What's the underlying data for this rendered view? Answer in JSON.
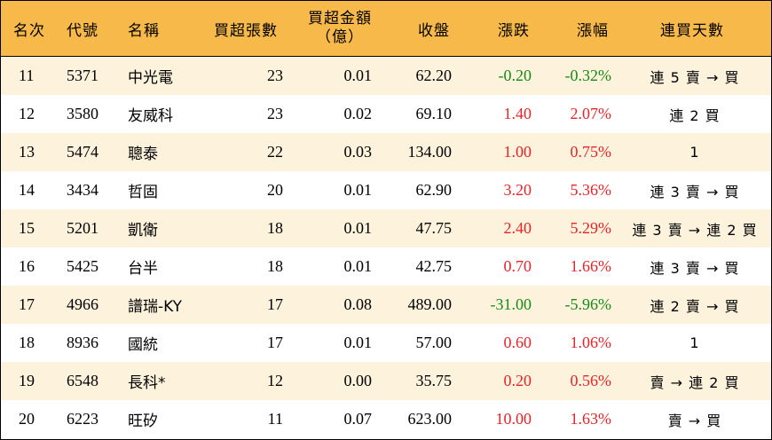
{
  "headers": {
    "rank": "名次",
    "code": "代號",
    "name": "名稱",
    "net_lots": "買超張數",
    "net_amount_line1": "買超金額",
    "net_amount_line2": "（億）",
    "close": "收盤",
    "change": "漲跌",
    "pct": "漲幅",
    "streak": "連買天數"
  },
  "rows": [
    {
      "rank": "11",
      "code": "5371",
      "name": "中光電",
      "lots": "23",
      "amount": "0.01",
      "close": "62.20",
      "change": "-0.20",
      "pct": "-0.32%",
      "streak": "連 5 賣 → 買",
      "dir": "down"
    },
    {
      "rank": "12",
      "code": "3580",
      "name": "友威科",
      "lots": "23",
      "amount": "0.02",
      "close": "69.10",
      "change": "1.40",
      "pct": "2.07%",
      "streak": "連 2 買",
      "dir": "up"
    },
    {
      "rank": "13",
      "code": "5474",
      "name": "聰泰",
      "lots": "22",
      "amount": "0.03",
      "close": "134.00",
      "change": "1.00",
      "pct": "0.75%",
      "streak": "1",
      "dir": "up"
    },
    {
      "rank": "14",
      "code": "3434",
      "name": "哲固",
      "lots": "20",
      "amount": "0.01",
      "close": "62.90",
      "change": "3.20",
      "pct": "5.36%",
      "streak": "連 3 賣 → 買",
      "dir": "up"
    },
    {
      "rank": "15",
      "code": "5201",
      "name": "凱衛",
      "lots": "18",
      "amount": "0.01",
      "close": "47.75",
      "change": "2.40",
      "pct": "5.29%",
      "streak": "連 3 賣 → 連 2 買",
      "dir": "up"
    },
    {
      "rank": "16",
      "code": "5425",
      "name": "台半",
      "lots": "18",
      "amount": "0.01",
      "close": "42.75",
      "change": "0.70",
      "pct": "1.66%",
      "streak": "連 3 賣 → 買",
      "dir": "up"
    },
    {
      "rank": "17",
      "code": "4966",
      "name": "譜瑞-KY",
      "lots": "17",
      "amount": "0.08",
      "close": "489.00",
      "change": "-31.00",
      "pct": "-5.96%",
      "streak": "連 2 賣 → 買",
      "dir": "down"
    },
    {
      "rank": "18",
      "code": "8936",
      "name": "國統",
      "lots": "17",
      "amount": "0.01",
      "close": "57.00",
      "change": "0.60",
      "pct": "1.06%",
      "streak": "1",
      "dir": "up"
    },
    {
      "rank": "19",
      "code": "6548",
      "name": "長科*",
      "lots": "12",
      "amount": "0.00",
      "close": "35.75",
      "change": "0.20",
      "pct": "0.56%",
      "streak": "賣 → 連 2 買",
      "dir": "up"
    },
    {
      "rank": "20",
      "code": "6223",
      "name": "旺矽",
      "lots": "11",
      "amount": "0.07",
      "close": "623.00",
      "change": "10.00",
      "pct": "1.63%",
      "streak": "賣 → 買",
      "dir": "up"
    }
  ],
  "colors": {
    "header_bg": "#f7b949",
    "alt_row_bg": "#fdf2dc",
    "up": "#e8232a",
    "down": "#178a17"
  }
}
